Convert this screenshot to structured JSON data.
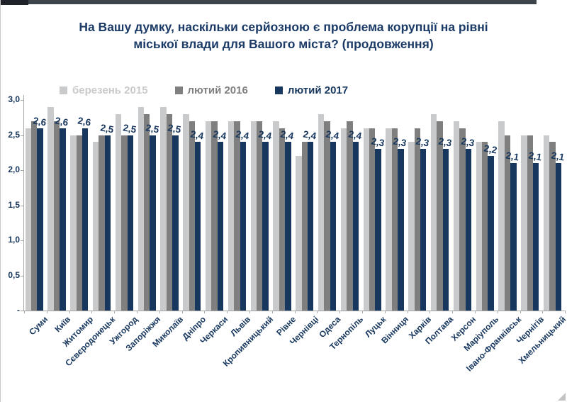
{
  "title": {
    "line1": "На Вашу думку, наскільки серйозною є проблема корупції на рівні",
    "line2": "міської влади для Вашого міста? (продовження)"
  },
  "colors": {
    "accent_navy": "#17375e",
    "title_navy": "#1b3a66",
    "axis_gray": "#a6a6a6",
    "top_strip": "#3d444b"
  },
  "chart_data": {
    "type": "bar",
    "title": "На Вашу думку, наскільки серйозною є проблема корупції на рівні міської влади для Вашого міста? (продовження)",
    "grid": false,
    "legend_position": "top",
    "decimal_separator": ",",
    "ylim": [
      0,
      3
    ],
    "yticks": [
      {
        "value": 3.0,
        "label": "3,0"
      },
      {
        "value": 2.5,
        "label": "2,5"
      },
      {
        "value": 2.0,
        "label": "2,0"
      },
      {
        "value": 1.5,
        "label": "1,5"
      },
      {
        "value": 1.0,
        "label": "1,0"
      },
      {
        "value": 0.5,
        "label": "0,5"
      },
      {
        "value": 0.0,
        "label": "-"
      }
    ],
    "categories": [
      "Суми",
      "Київ",
      "Житомир",
      "Сєвєродонецьк",
      "Ужгород",
      "Запоріжжя",
      "Миколаїв",
      "Дніпро",
      "Черкаси",
      "Львів",
      "Кропивницький",
      "Рівне",
      "Чернівці",
      "Одеса",
      "Тернопіль",
      "Луцьк",
      "Вінниця",
      "Харків",
      "Полтава",
      "Херсон",
      "Маріуполь",
      "Івано-Франківськ",
      "Чернігів",
      "Хмельницький"
    ],
    "series": [
      {
        "name": "березень 2015",
        "color": "#c9cacc",
        "values": [
          2.6,
          2.9,
          2.5,
          2.4,
          2.8,
          2.9,
          2.9,
          2.8,
          2.7,
          2.7,
          2.7,
          2.7,
          2.2,
          2.8,
          2.6,
          2.6,
          2.6,
          2.4,
          2.8,
          2.7,
          2.4,
          2.7,
          2.5,
          2.5
        ]
      },
      {
        "name": "лютий 2016",
        "color": "#7f7f7f",
        "values": [
          2.7,
          2.7,
          2.5,
          2.5,
          2.5,
          2.8,
          2.8,
          2.7,
          2.7,
          2.7,
          2.7,
          2.6,
          2.4,
          2.7,
          2.7,
          2.6,
          2.6,
          2.6,
          2.7,
          2.6,
          2.4,
          2.5,
          2.5,
          2.4
        ]
      },
      {
        "name": "лютий 2017",
        "color": "#17375e",
        "values": [
          2.6,
          2.6,
          2.6,
          2.5,
          2.5,
          2.5,
          2.5,
          2.4,
          2.4,
          2.4,
          2.4,
          2.4,
          2.4,
          2.4,
          2.4,
          2.3,
          2.3,
          2.3,
          2.3,
          2.3,
          2.2,
          2.1,
          2.1,
          2.1
        ],
        "labels": [
          "2,6",
          "2,6",
          "2,6",
          "2,5",
          "2,5",
          "2,5",
          "2,5",
          "2,4",
          "2,4",
          "2,4",
          "2,4",
          "2,4",
          "2,4",
          "2,4",
          "2,4",
          "2,3",
          "2,3",
          "2,3",
          "2,3",
          "2,3",
          "2,2",
          "2,1",
          "2,1",
          "2,1"
        ]
      }
    ]
  }
}
